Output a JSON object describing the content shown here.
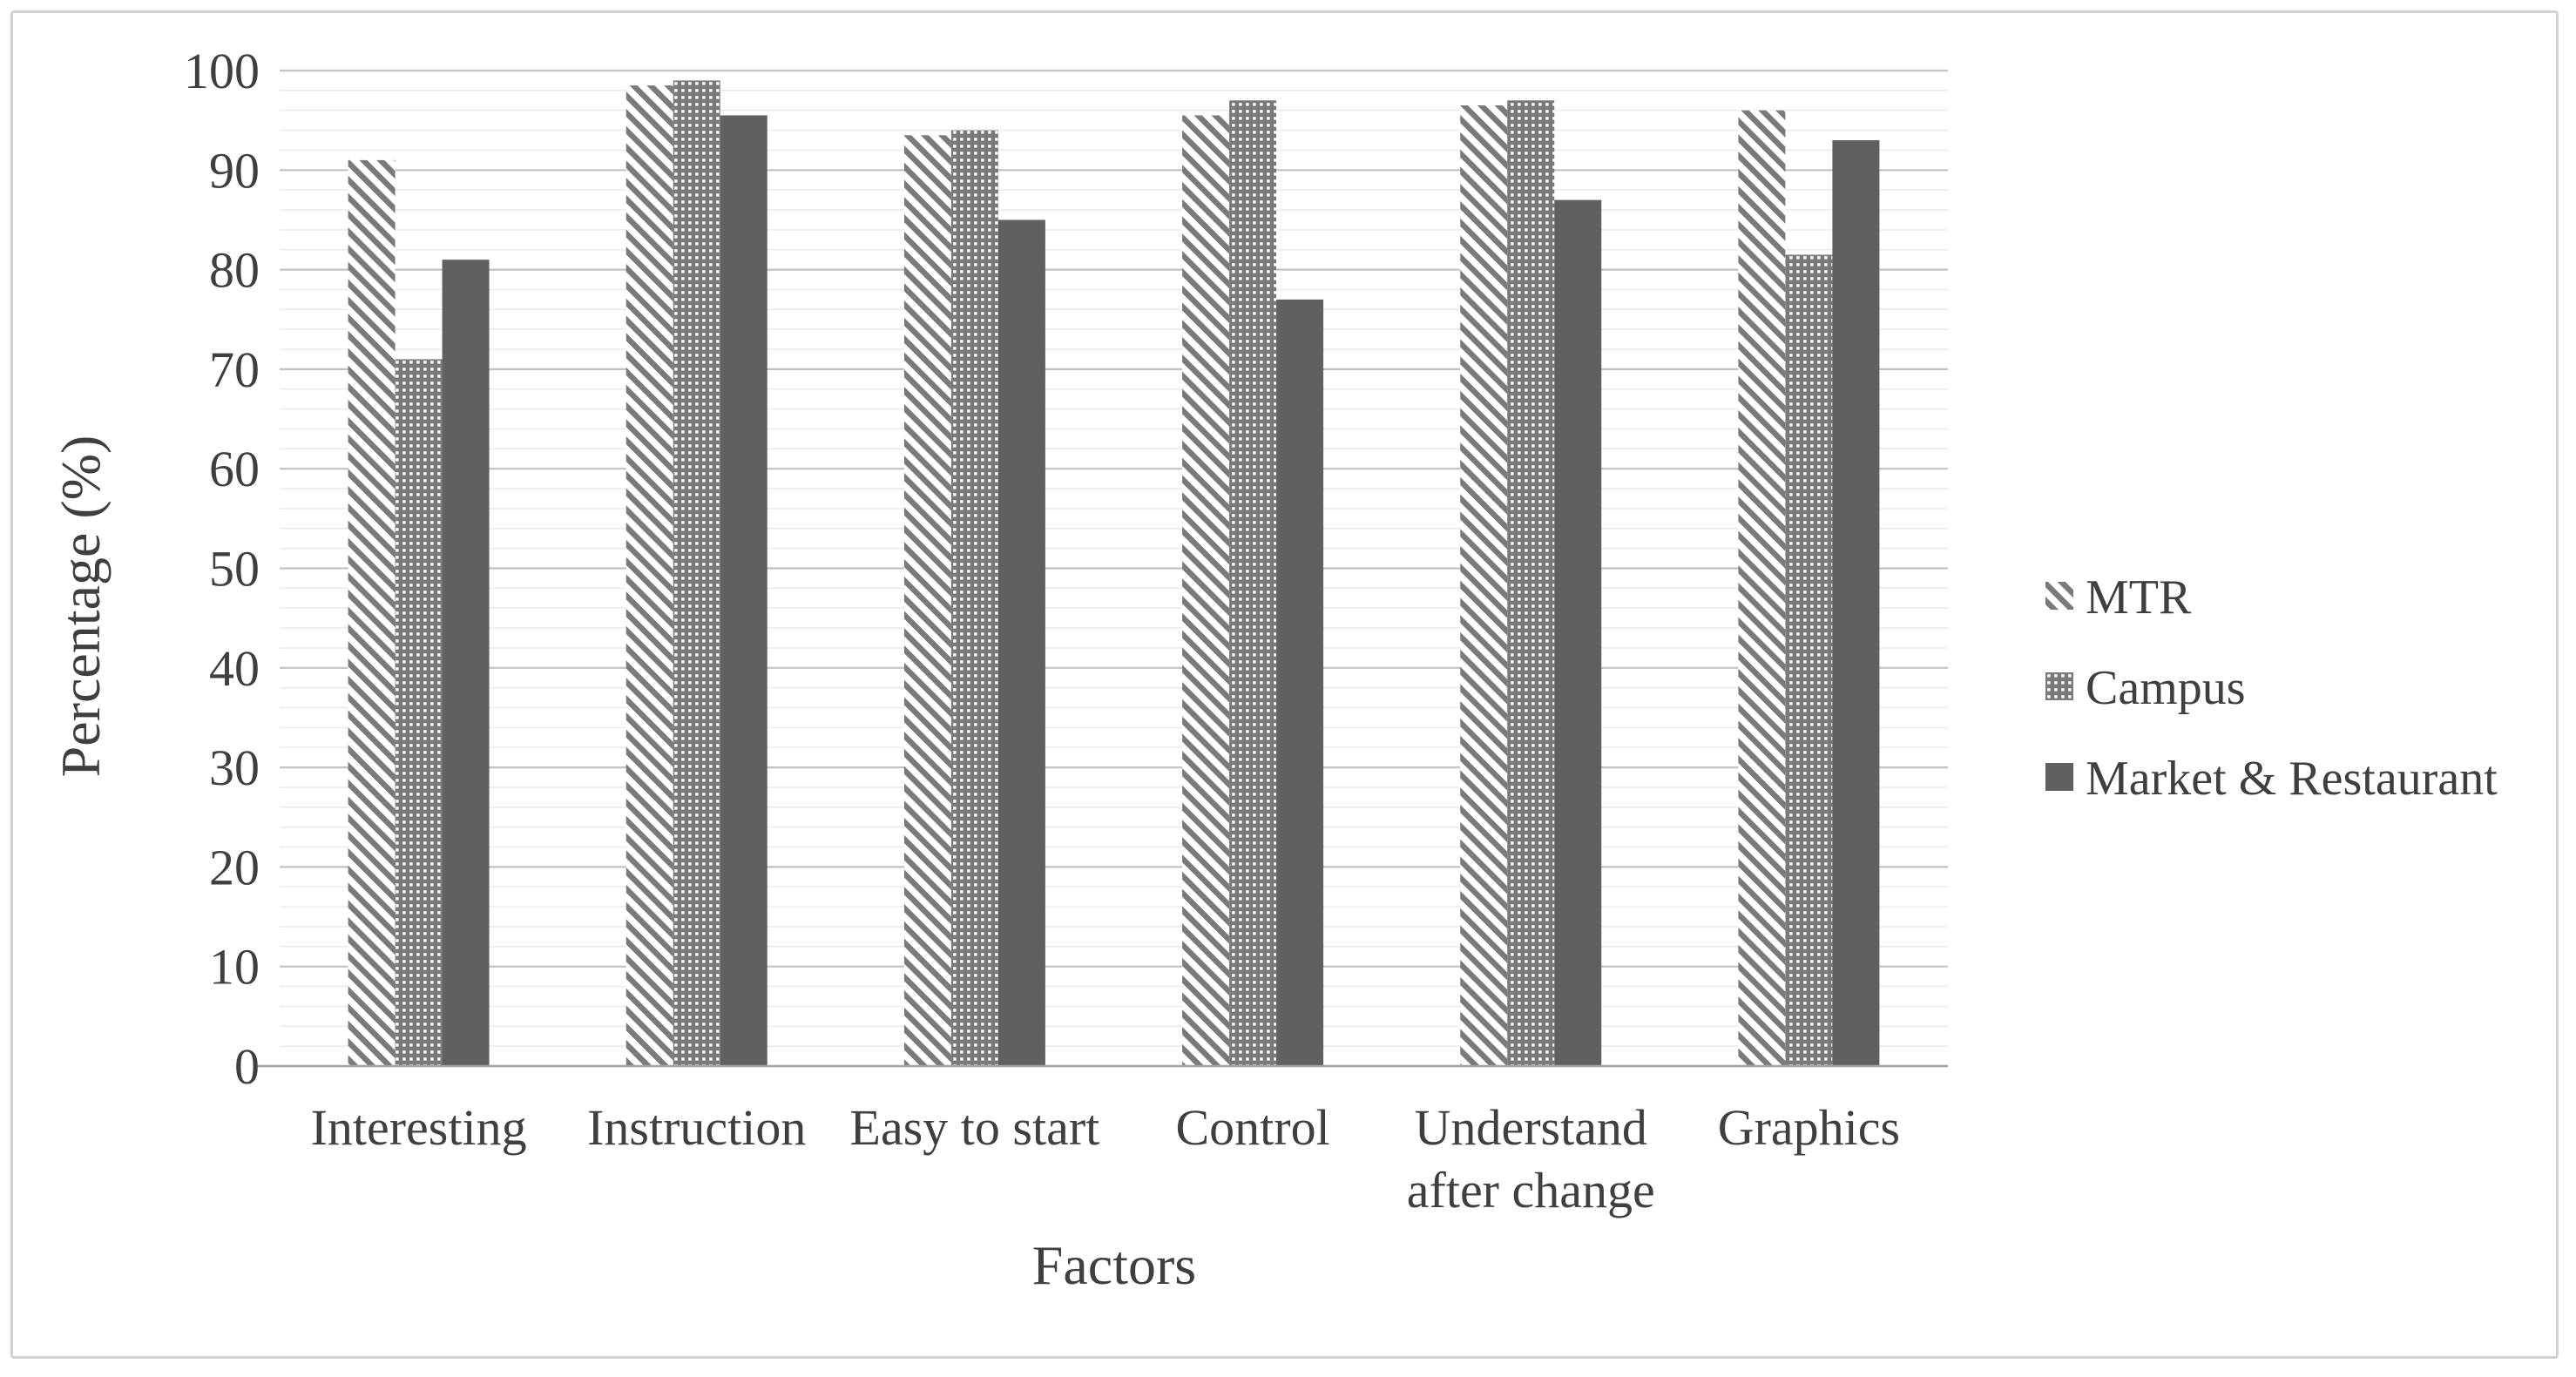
{
  "chart_data": {
    "type": "bar",
    "title": "",
    "xlabel": "Factors",
    "ylabel": "Percentage (%)",
    "categories": [
      "Interesting",
      "Instruction",
      "Easy to start",
      "Control",
      "Understand after change",
      "Graphics"
    ],
    "categories_wrapped": [
      [
        "Interesting"
      ],
      [
        "Instruction"
      ],
      [
        "Easy to start"
      ],
      [
        "Control"
      ],
      [
        "Understand",
        "after change"
      ],
      [
        "Graphics"
      ]
    ],
    "series": [
      {
        "name": "MTR",
        "pattern": "diagonal-stripes",
        "values": [
          91,
          98.5,
          93.5,
          95.5,
          96.5,
          96
        ]
      },
      {
        "name": "Campus",
        "pattern": "dotted-grid",
        "values": [
          71,
          99,
          94,
          97,
          97,
          81.5
        ]
      },
      {
        "name": "Market & Restaurant",
        "pattern": "solid",
        "values": [
          81,
          95.5,
          85,
          77,
          87,
          93
        ]
      }
    ],
    "ylim": [
      0,
      100
    ],
    "yticks": [
      0,
      10,
      20,
      30,
      40,
      50,
      60,
      70,
      80,
      90,
      100
    ],
    "minor_grid_step": 2,
    "grid": "horizontal major + minor",
    "legend_position": "right",
    "colors": {
      "pattern_gray": "#7a7a7a",
      "solid_bar": "#606060",
      "major_grid": "#c2c2c2",
      "minor_grid": "#ebebe9",
      "baseline": "#a3a3a3",
      "text": "#3f3f3f",
      "border": "#d2d2d2",
      "background": "#ffffff"
    }
  }
}
